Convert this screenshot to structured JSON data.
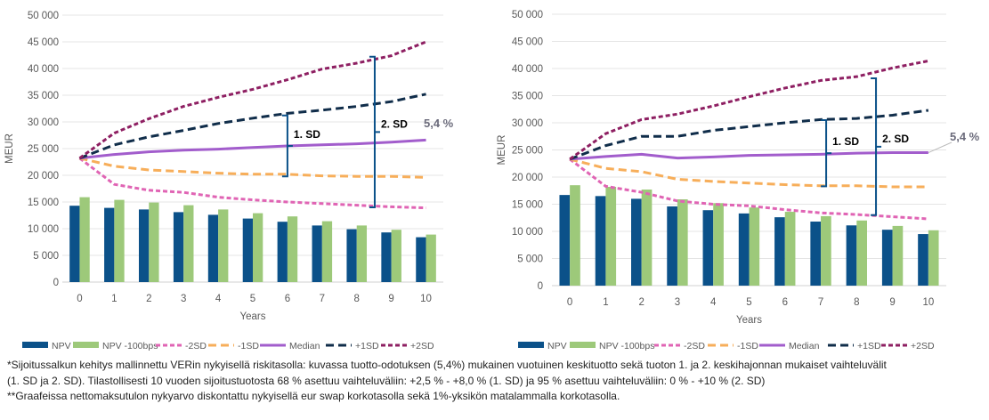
{
  "chart_data": [
    {
      "type": "bar+line",
      "xlabel": "Years",
      "ylabel": "MEUR",
      "ylim": [
        0,
        50000
      ],
      "yticks": [
        "0",
        "5 000",
        "10 000",
        "15 000",
        "20 000",
        "25 000",
        "30 000",
        "35 000",
        "40 000",
        "45 000",
        "50 000"
      ],
      "categories": [
        "0",
        "1",
        "2",
        "3",
        "4",
        "5",
        "6",
        "7",
        "8",
        "9",
        "10"
      ],
      "grid": true,
      "legend": "bottom",
      "series": [
        {
          "name": "NPV",
          "kind": "bar",
          "color": "#0B5189",
          "values": [
            14300,
            13900,
            13600,
            13100,
            12600,
            11900,
            11300,
            10600,
            9900,
            9300,
            8400
          ]
        },
        {
          "name": "NPV -100bps",
          "kind": "bar",
          "color": "#9DC97A",
          "values": [
            15900,
            15400,
            14900,
            14400,
            13600,
            12900,
            12300,
            11400,
            10600,
            9800,
            8900
          ]
        },
        {
          "name": "-2SD",
          "kind": "line",
          "dash": "short",
          "color": "#E064B4",
          "values": [
            23200,
            18300,
            17200,
            16800,
            15900,
            15400,
            15000,
            14700,
            14400,
            14100,
            13900
          ]
        },
        {
          "name": "-1SD",
          "kind": "line",
          "dash": "long",
          "color": "#F7AE5A",
          "values": [
            23200,
            21700,
            21000,
            20700,
            20400,
            20200,
            20200,
            19900,
            19800,
            19800,
            19600
          ]
        },
        {
          "name": "Median",
          "kind": "line",
          "dash": "solid",
          "color": "#A25DCC",
          "values": [
            23200,
            23900,
            24400,
            24700,
            24900,
            25200,
            25500,
            25700,
            25900,
            26200,
            26600
          ]
        },
        {
          "name": "+1SD",
          "kind": "line",
          "dash": "long",
          "color": "#102D4A",
          "values": [
            23200,
            25700,
            27200,
            28400,
            29700,
            30700,
            31600,
            32200,
            32900,
            33800,
            35200
          ]
        },
        {
          "name": "+2SD",
          "kind": "line",
          "dash": "short",
          "color": "#8E1F62",
          "values": [
            23200,
            27900,
            30600,
            32900,
            34600,
            36100,
            37900,
            39900,
            41000,
            42400,
            45000
          ]
        }
      ],
      "annotations": [
        {
          "text": "1. SD",
          "x": 6.0,
          "y_from": 31200,
          "y_to": 19800
        },
        {
          "text": "2. SD",
          "x": 8.52,
          "y_from": 42200,
          "y_to": 14000
        }
      ],
      "end_label": "5,4 %"
    },
    {
      "type": "bar+line",
      "xlabel": "Years",
      "ylabel": "MEUR",
      "ylim": [
        0,
        50000
      ],
      "yticks": [
        "0",
        "5 000",
        "10 000",
        "15 000",
        "20 000",
        "25 000",
        "30 000",
        "35 000",
        "40 000",
        "45 000",
        "50 000"
      ],
      "categories": [
        "0",
        "1",
        "2",
        "3",
        "4",
        "5",
        "6",
        "7",
        "8",
        "9",
        "10"
      ],
      "grid": true,
      "legend": "bottom",
      "series": [
        {
          "name": "NPV",
          "kind": "bar",
          "color": "#0B5189",
          "values": [
            16700,
            16500,
            16000,
            14600,
            13900,
            13300,
            12600,
            11800,
            11100,
            10300,
            9500
          ]
        },
        {
          "name": "NPV -100bps",
          "kind": "bar",
          "color": "#9DC97A",
          "values": [
            18500,
            18200,
            17700,
            15900,
            15200,
            14400,
            13600,
            12800,
            12000,
            11000,
            10200
          ]
        },
        {
          "name": "-2SD",
          "kind": "line",
          "dash": "short",
          "color": "#E064B4",
          "values": [
            23300,
            18300,
            17200,
            15600,
            15000,
            14700,
            14000,
            13400,
            13100,
            12700,
            12300
          ]
        },
        {
          "name": "-1SD",
          "kind": "line",
          "dash": "long",
          "color": "#F7AE5A",
          "values": [
            23300,
            21600,
            21000,
            19600,
            19200,
            18900,
            18600,
            18400,
            18400,
            18200,
            18200
          ]
        },
        {
          "name": "Median",
          "kind": "line",
          "dash": "solid",
          "color": "#A25DCC",
          "values": [
            23300,
            23800,
            24200,
            23500,
            23700,
            24000,
            24100,
            24200,
            24400,
            24500,
            24500
          ]
        },
        {
          "name": "+1SD",
          "kind": "line",
          "dash": "long",
          "color": "#102D4A",
          "values": [
            23300,
            25800,
            27500,
            27500,
            28600,
            29300,
            30000,
            30600,
            30800,
            31400,
            32300
          ]
        },
        {
          "name": "+2SD",
          "kind": "line",
          "dash": "short",
          "color": "#8E1F62",
          "values": [
            23300,
            28000,
            30600,
            31600,
            33100,
            34800,
            36400,
            37800,
            38500,
            40100,
            41400
          ]
        }
      ],
      "annotations": [
        {
          "text": "1. SD",
          "x": 7.15,
          "y_from": 30500,
          "y_to": 18300
        },
        {
          "text": "2. SD",
          "x": 8.54,
          "y_from": 38200,
          "y_to": 13000
        }
      ],
      "end_label": "5,4 %"
    }
  ],
  "footnote": {
    "line1": "*Sijoitussalkun kehitys mallinnettu VERin nykyisellä riskitasolla: kuvassa tuotto-odotuksen (5,4%) mukainen vuotuinen keskituotto sekä tuoton 1. ja 2. keskihajonnan mukaiset vaihteluvälit",
    "line2": "(1. SD ja 2. SD). Tilastollisesti 10 vuoden sijoitustuotosta 68 % asettuu vaihteluväliin: +2,5 % - +8,0 % (1. SD) ja 95 % asettuu vaihteluväliin: 0 % - +10 % (2. SD)",
    "line3": "**Graafeissa nettomaksutulon nykyarvo diskontattu nykyisellä eur swap korkotasolla sekä 1%-yksikön matalammalla korkotasolla."
  }
}
